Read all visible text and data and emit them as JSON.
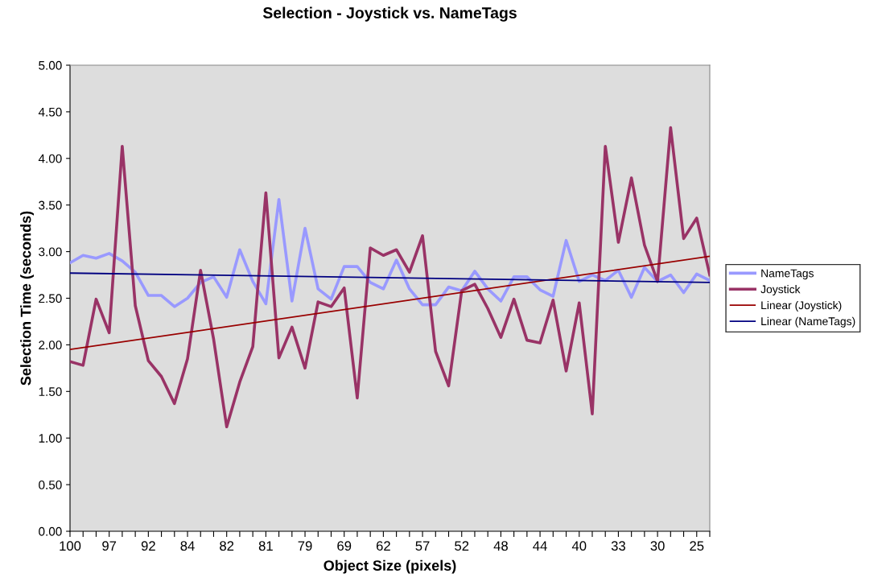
{
  "chart_data": {
    "type": "line",
    "title": "Selection - Joystick vs. NameTags",
    "xlabel": "Object Size (pixels)",
    "ylabel": "Selection Time (seconds)",
    "categories": [
      "100",
      null,
      null,
      "97",
      null,
      null,
      "92",
      null,
      null,
      "84",
      null,
      null,
      "82",
      null,
      null,
      "81",
      null,
      null,
      "79",
      null,
      null,
      "69",
      null,
      null,
      "62",
      null,
      null,
      "57",
      null,
      null,
      "52",
      null,
      null,
      "48",
      null,
      null,
      "44",
      null,
      null,
      "40",
      null,
      null,
      "33",
      null,
      null,
      "30",
      null,
      null,
      "25",
      null
    ],
    "series": [
      {
        "name": "NameTags",
        "color": "#9999ff",
        "values": [
          2.88,
          2.96,
          2.93,
          2.98,
          2.9,
          2.78,
          2.53,
          2.53,
          2.41,
          2.5,
          2.67,
          2.73,
          2.51,
          3.02,
          2.68,
          2.44,
          3.56,
          2.47,
          3.25,
          2.6,
          2.49,
          2.84,
          2.84,
          2.67,
          2.6,
          2.91,
          2.6,
          2.43,
          2.43,
          2.62,
          2.58,
          2.79,
          2.6,
          2.47,
          2.73,
          2.73,
          2.59,
          2.52,
          3.12,
          2.68,
          2.75,
          2.69,
          2.8,
          2.51,
          2.83,
          2.68,
          2.75,
          2.56,
          2.76,
          2.69
        ]
      },
      {
        "name": "Joystick",
        "color": "#993366",
        "values": [
          1.82,
          1.78,
          2.49,
          2.13,
          4.13,
          2.42,
          1.83,
          1.66,
          1.37,
          1.85,
          2.8,
          2.06,
          1.12,
          1.6,
          1.98,
          3.63,
          1.86,
          2.19,
          1.75,
          2.46,
          2.41,
          2.61,
          1.43,
          3.04,
          2.96,
          3.02,
          2.78,
          3.17,
          1.93,
          1.56,
          2.58,
          2.65,
          2.39,
          2.08,
          2.49,
          2.05,
          2.02,
          2.48,
          1.72,
          2.45,
          1.26,
          4.13,
          3.1,
          3.79,
          3.07,
          2.68,
          4.33,
          3.14,
          3.36,
          2.75
        ]
      },
      {
        "name": "Linear (Joystick)",
        "color": "#990000",
        "values": [
          1.95,
          null,
          null,
          null,
          null,
          null,
          null,
          null,
          null,
          null,
          null,
          null,
          null,
          null,
          null,
          null,
          null,
          null,
          null,
          null,
          null,
          null,
          null,
          null,
          null,
          null,
          null,
          null,
          null,
          null,
          null,
          null,
          null,
          null,
          null,
          null,
          null,
          null,
          null,
          null,
          null,
          null,
          null,
          null,
          null,
          null,
          null,
          null,
          null,
          2.95
        ]
      },
      {
        "name": "Linear (NameTags)",
        "color": "#000080",
        "values": [
          2.77,
          null,
          null,
          null,
          null,
          null,
          null,
          null,
          null,
          null,
          null,
          null,
          null,
          null,
          null,
          null,
          null,
          null,
          null,
          null,
          null,
          null,
          null,
          null,
          null,
          null,
          null,
          null,
          null,
          null,
          null,
          null,
          null,
          null,
          null,
          null,
          null,
          null,
          null,
          null,
          null,
          null,
          null,
          null,
          null,
          null,
          null,
          null,
          null,
          2.67
        ]
      }
    ],
    "ylim": [
      0,
      5
    ],
    "yticks": [
      {
        "value": 0,
        "label": "0.00"
      },
      {
        "value": 0.5,
        "label": "0.50"
      },
      {
        "value": 1,
        "label": "1.00"
      },
      {
        "value": 1.5,
        "label": "1.50"
      },
      {
        "value": 2,
        "label": "2.00"
      },
      {
        "value": 2.5,
        "label": "2.50"
      },
      {
        "value": 3,
        "label": "3.00"
      },
      {
        "value": 3.5,
        "label": "3.50"
      },
      {
        "value": 4,
        "label": "4.00"
      },
      {
        "value": 4.5,
        "label": "4.50"
      },
      {
        "value": 5,
        "label": "5.00"
      }
    ],
    "grid": false,
    "legend": "right",
    "marker": "none",
    "line_style": "solid"
  }
}
